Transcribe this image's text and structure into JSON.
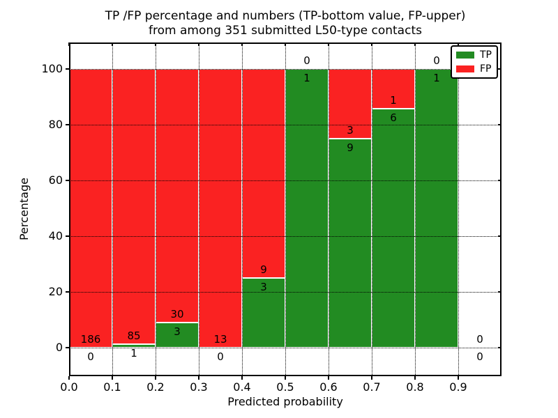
{
  "title": {
    "line1": "TP /FP percentage and numbers (TP-bottom value, FP-upper)",
    "line2": "from among 351 submitted L50-type contacts"
  },
  "axes": {
    "xlabel": "Predicted probability",
    "ylabel": "Percentage",
    "x_ticks": [
      "0.0",
      "0.1",
      "0.2",
      "0.3",
      "0.4",
      "0.5",
      "0.6",
      "0.7",
      "0.8",
      "0.9"
    ],
    "y_ticks": [
      "0",
      "20",
      "40",
      "60",
      "80",
      "100"
    ]
  },
  "legend": [
    {
      "label": "TP",
      "color": "#228b22"
    },
    {
      "label": "FP",
      "color": "#fa2222"
    }
  ],
  "chart_data": {
    "type": "bar",
    "stacked": true,
    "normalized": "each bar scaled to 100% of bin total; labels show raw counts",
    "title": "TP /FP percentage and numbers (TP-bottom value, FP-upper) from among 351 submitted L50-type contacts",
    "xlabel": "Predicted probability",
    "ylabel": "Percentage",
    "categories": [
      "0.0-0.1",
      "0.1-0.2",
      "0.2-0.3",
      "0.3-0.4",
      "0.4-0.5",
      "0.5-0.6",
      "0.6-0.7",
      "0.7-0.8",
      "0.8-0.9",
      "0.9-1.0"
    ],
    "series": [
      {
        "name": "TP",
        "color": "#228b22",
        "values": [
          0,
          1,
          3,
          0,
          3,
          1,
          9,
          6,
          1,
          0
        ]
      },
      {
        "name": "FP",
        "color": "#fa2222",
        "values": [
          186,
          85,
          30,
          13,
          9,
          0,
          3,
          1,
          0,
          0
        ]
      }
    ],
    "tp_percent": [
      0,
      1.16,
      9.09,
      0,
      25,
      100,
      75,
      85.71,
      100,
      null
    ],
    "total_contacts": 351,
    "xlim": [
      0.0,
      1.0
    ],
    "ylim": [
      -10,
      110
    ],
    "y_tick_values": [
      0,
      20,
      40,
      60,
      80,
      100
    ],
    "grid": "dotted",
    "legend_position": "upper right"
  }
}
